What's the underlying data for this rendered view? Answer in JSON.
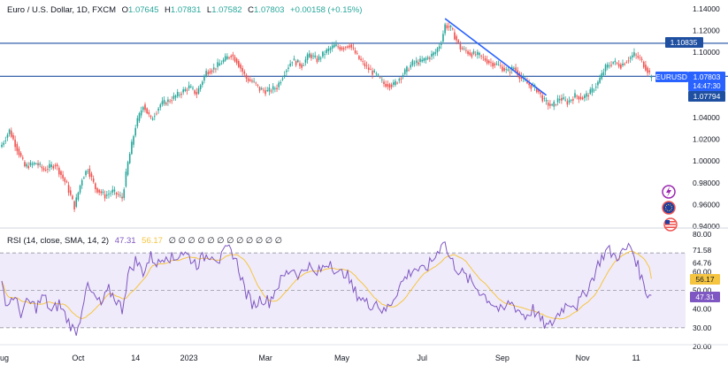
{
  "header": {
    "symbol_title": "Euro / U.S. Dollar, 1D, FXCM",
    "ohlc": [
      {
        "key": "O",
        "value": "1.07645"
      },
      {
        "key": "H",
        "value": "1.07831"
      },
      {
        "key": "L",
        "value": "1.07582"
      },
      {
        "key": "C",
        "value": "1.07803"
      }
    ],
    "change": "+0.00158 (+0.15%)"
  },
  "colors": {
    "up": "#26a69a",
    "down": "#ef5350",
    "level_line": "#1e4fa0",
    "trendline": "#2962ff",
    "rsi_line": "#7e57c2",
    "rsi_ma": "#f5c542",
    "rsi_band": "#f0ebfa",
    "price_tag": "#2962ff"
  },
  "badges": {
    "symbol": "EURUSD",
    "last_price": "1.07803",
    "countdown": "14:47:30",
    "level_upper": "1.10835",
    "level_lower": "1.07794",
    "rsi_ma_value": "56.17",
    "rsi_value": "47.31"
  },
  "icons": [
    "lightning-icon",
    "eu-flag-icon",
    "us-flag-icon"
  ],
  "rsi_legend": {
    "label": "RSI (14, close, SMA, 14, 2)",
    "value1": "47.31",
    "value2": "56.17",
    "placeholders": [
      "∅",
      "∅",
      "∅",
      "∅",
      "∅",
      "∅",
      "∅",
      "∅",
      "∅",
      "∅",
      "∅",
      "∅"
    ]
  },
  "chart_data": [
    {
      "type": "candlestick",
      "x_axis_ticks": [
        {
          "label": "Aug",
          "index": 0
        },
        {
          "label": "Oct",
          "index": 40
        },
        {
          "label": "14",
          "index": 70
        },
        {
          "label": "2023",
          "index": 98
        },
        {
          "label": "Mar",
          "index": 138
        },
        {
          "label": "May",
          "index": 178
        },
        {
          "label": "Jul",
          "index": 220
        },
        {
          "label": "Sep",
          "index": 262
        },
        {
          "label": "Nov",
          "index": 304
        },
        {
          "label": "11",
          "index": 332
        }
      ],
      "y_axis_ticks": [
        "1.14000",
        "1.12000",
        "1.10000",
        "1.08000",
        "1.06000",
        "1.04000",
        "1.02000",
        "1.00000",
        "0.98000",
        "0.96000",
        "0.94000"
      ],
      "ylim": [
        0.94,
        1.14
      ],
      "horizontal_levels": [
        1.10835,
        1.07794
      ],
      "trendline": {
        "start": {
          "index": 232,
          "price": 1.131
        },
        "end": {
          "index": 285,
          "price": 1.0605
        }
      },
      "anchors": [
        [
          0,
          1.015
        ],
        [
          4,
          1.028
        ],
        [
          12,
          0.995
        ],
        [
          18,
          0.998
        ],
        [
          22,
          0.992
        ],
        [
          28,
          0.997
        ],
        [
          34,
          0.978
        ],
        [
          38,
          0.958
        ],
        [
          42,
          0.984
        ],
        [
          45,
          0.993
        ],
        [
          49,
          0.975
        ],
        [
          54,
          0.968
        ],
        [
          58,
          0.972
        ],
        [
          63,
          0.966
        ],
        [
          66,
          0.998
        ],
        [
          70,
          1.032
        ],
        [
          74,
          1.052
        ],
        [
          78,
          1.038
        ],
        [
          83,
          1.052
        ],
        [
          88,
          1.056
        ],
        [
          93,
          1.062
        ],
        [
          98,
          1.068
        ],
        [
          102,
          1.062
        ],
        [
          107,
          1.082
        ],
        [
          111,
          1.085
        ],
        [
          115,
          1.091
        ],
        [
          120,
          1.098
        ],
        [
          123,
          1.092
        ],
        [
          128,
          1.076
        ],
        [
          132,
          1.072
        ],
        [
          135,
          1.066
        ],
        [
          139,
          1.064
        ],
        [
          144,
          1.068
        ],
        [
          148,
          1.082
        ],
        [
          152,
          1.093
        ],
        [
          157,
          1.088
        ],
        [
          161,
          1.098
        ],
        [
          165,
          1.093
        ],
        [
          170,
          1.101
        ],
        [
          174,
          1.106
        ],
        [
          178,
          1.104
        ],
        [
          182,
          1.107
        ],
        [
          187,
          1.094
        ],
        [
          191,
          1.086
        ],
        [
          196,
          1.079
        ],
        [
          200,
          1.071
        ],
        [
          205,
          1.07
        ],
        [
          210,
          1.08
        ],
        [
          215,
          1.09
        ],
        [
          220,
          1.092
        ],
        [
          224,
          1.096
        ],
        [
          227,
          1.1
        ],
        [
          230,
          1.11
        ],
        [
          232,
          1.125
        ],
        [
          235,
          1.122
        ],
        [
          240,
          1.104
        ],
        [
          245,
          1.099
        ],
        [
          250,
          1.097
        ],
        [
          255,
          1.091
        ],
        [
          260,
          1.088
        ],
        [
          265,
          1.082
        ],
        [
          268,
          1.086
        ],
        [
          272,
          1.076
        ],
        [
          276,
          1.07
        ],
        [
          280,
          1.066
        ],
        [
          284,
          1.055
        ],
        [
          288,
          1.05
        ],
        [
          292,
          1.058
        ],
        [
          296,
          1.054
        ],
        [
          300,
          1.06
        ],
        [
          304,
          1.058
        ],
        [
          308,
          1.063
        ],
        [
          312,
          1.072
        ],
        [
          316,
          1.086
        ],
        [
          320,
          1.091
        ],
        [
          324,
          1.088
        ],
        [
          328,
          1.094
        ],
        [
          331,
          1.098
        ],
        [
          334,
          1.094
        ],
        [
          337,
          1.086
        ],
        [
          340,
          1.078
        ]
      ],
      "last": {
        "open": 1.07645,
        "high": 1.07831,
        "low": 1.07582,
        "close": 1.07803
      }
    },
    {
      "type": "line",
      "title": "RSI (14, close, SMA, 14, 2)",
      "y_axis_ticks": [
        "80.00",
        "71.58",
        "64.76",
        "60.00",
        "50.00",
        "40.00",
        "30.00",
        "20.00"
      ],
      "ylim": [
        20,
        80
      ],
      "levels": [
        70,
        50,
        30
      ],
      "series": [
        {
          "name": "RSI",
          "last": 47.31
        },
        {
          "name": "SMA",
          "last": 56.17
        }
      ],
      "rsi_anchors": [
        [
          0,
          52
        ],
        [
          3,
          42
        ],
        [
          6,
          47
        ],
        [
          10,
          38
        ],
        [
          14,
          44
        ],
        [
          18,
          41
        ],
        [
          22,
          47
        ],
        [
          26,
          38
        ],
        [
          30,
          43
        ],
        [
          34,
          35
        ],
        [
          38,
          28
        ],
        [
          40,
          30
        ],
        [
          44,
          52
        ],
        [
          48,
          47
        ],
        [
          52,
          42
        ],
        [
          56,
          50
        ],
        [
          60,
          45
        ],
        [
          63,
          40
        ],
        [
          66,
          58
        ],
        [
          70,
          66
        ],
        [
          74,
          60
        ],
        [
          78,
          68
        ],
        [
          82,
          64
        ],
        [
          86,
          70
        ],
        [
          90,
          66
        ],
        [
          94,
          71
        ],
        [
          98,
          68
        ],
        [
          102,
          64
        ],
        [
          106,
          68
        ],
        [
          110,
          70
        ],
        [
          114,
          66
        ],
        [
          118,
          72
        ],
        [
          121,
          70
        ],
        [
          124,
          62
        ],
        [
          128,
          48
        ],
        [
          132,
          42
        ],
        [
          136,
          46
        ],
        [
          140,
          44
        ],
        [
          144,
          52
        ],
        [
          148,
          58
        ],
        [
          152,
          62
        ],
        [
          156,
          58
        ],
        [
          160,
          64
        ],
        [
          164,
          58
        ],
        [
          168,
          62
        ],
        [
          172,
          66
        ],
        [
          176,
          58
        ],
        [
          180,
          60
        ],
        [
          184,
          50
        ],
        [
          188,
          46
        ],
        [
          192,
          42
        ],
        [
          196,
          44
        ],
        [
          200,
          38
        ],
        [
          204,
          44
        ],
        [
          208,
          52
        ],
        [
          212,
          58
        ],
        [
          216,
          62
        ],
        [
          220,
          60
        ],
        [
          224,
          64
        ],
        [
          228,
          70
        ],
        [
          231,
          78
        ],
        [
          234,
          68
        ],
        [
          238,
          62
        ],
        [
          242,
          58
        ],
        [
          246,
          54
        ],
        [
          250,
          50
        ],
        [
          254,
          46
        ],
        [
          258,
          42
        ],
        [
          262,
          38
        ],
        [
          266,
          44
        ],
        [
          270,
          40
        ],
        [
          274,
          36
        ],
        [
          278,
          40
        ],
        [
          282,
          34
        ],
        [
          286,
          30
        ],
        [
          289,
          34
        ],
        [
          293,
          40
        ],
        [
          297,
          44
        ],
        [
          301,
          42
        ],
        [
          305,
          48
        ],
        [
          309,
          56
        ],
        [
          313,
          66
        ],
        [
          317,
          72
        ],
        [
          321,
          68
        ],
        [
          325,
          70
        ],
        [
          329,
          74
        ],
        [
          332,
          66
        ],
        [
          335,
          56
        ],
        [
          338,
          48
        ],
        [
          340,
          47.31
        ]
      ]
    }
  ]
}
